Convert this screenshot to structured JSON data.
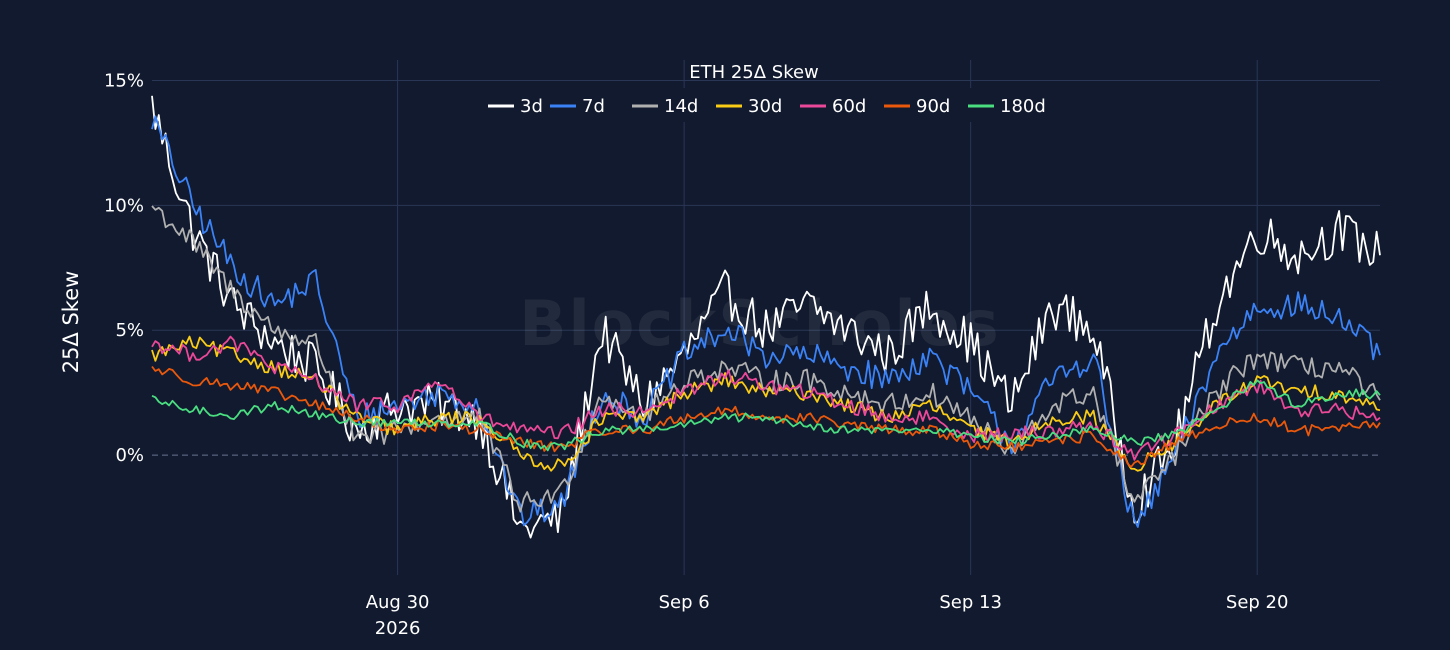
{
  "watermark": "BlockScholes",
  "chart_data": {
    "type": "line",
    "title": "ETH 25Δ Skew",
    "ylabel": "25Δ Skew",
    "xlabel": "",
    "y_unit": "%",
    "ylim": [
      -4.8,
      15.5
    ],
    "yticks": [
      0,
      5,
      10,
      15
    ],
    "ytick_labels": [
      "0%",
      "5%",
      "10%",
      "15%"
    ],
    "xlim": [
      "2026-08-24",
      "2026-09-23"
    ],
    "xticks": [
      "2026-08-30",
      "2026-09-06",
      "2026-09-13",
      "2026-09-20"
    ],
    "xtick_labels": [
      {
        "line1": "Aug 30",
        "line2": "2026"
      },
      {
        "line1": "Sep 6",
        "line2": ""
      },
      {
        "line1": "Sep 13",
        "line2": ""
      },
      {
        "line1": "Sep 20",
        "line2": ""
      }
    ],
    "grid": true,
    "legend_position": "top-center",
    "x": [
      "2026-08-24",
      "2026-08-25",
      "2026-08-26",
      "2026-08-27",
      "2026-08-28",
      "2026-08-29",
      "2026-08-30",
      "2026-08-31",
      "2026-09-01",
      "2026-09-02",
      "2026-09-03",
      "2026-09-04",
      "2026-09-05",
      "2026-09-06",
      "2026-09-07",
      "2026-09-08",
      "2026-09-09",
      "2026-09-10",
      "2026-09-11",
      "2026-09-12",
      "2026-09-13",
      "2026-09-14",
      "2026-09-15",
      "2026-09-16",
      "2026-09-17",
      "2026-09-18",
      "2026-09-19",
      "2026-09-20",
      "2026-09-21",
      "2026-09-22",
      "2026-09-23"
    ],
    "series": [
      {
        "name": "3d",
        "color": "#ffffff",
        "values": [
          14.0,
          9.0,
          6.0,
          4.5,
          3.5,
          1.0,
          2.0,
          2.0,
          1.5,
          -3.0,
          -2.5,
          5.0,
          2.0,
          4.0,
          6.5,
          5.0,
          6.0,
          5.0,
          4.0,
          6.0,
          4.5,
          2.0,
          6.0,
          5.0,
          -2.0,
          0.5,
          6.0,
          9.0,
          8.0,
          9.0,
          8.0
        ]
      },
      {
        "name": "7d",
        "color": "#3b82f6",
        "values": [
          13.5,
          10.0,
          7.5,
          6.0,
          7.0,
          1.5,
          2.0,
          2.5,
          2.0,
          -2.5,
          -2.0,
          2.5,
          1.5,
          4.0,
          5.0,
          4.0,
          4.0,
          3.5,
          3.0,
          4.0,
          2.5,
          0.5,
          3.0,
          4.0,
          -3.0,
          0.0,
          4.0,
          6.0,
          6.0,
          5.5,
          4.0
        ]
      },
      {
        "name": "14d",
        "color": "#b0b0b0",
        "values": [
          10.0,
          8.5,
          6.5,
          5.0,
          4.5,
          0.5,
          1.0,
          1.5,
          1.5,
          -2.0,
          -1.5,
          2.5,
          1.5,
          3.0,
          3.5,
          3.0,
          3.0,
          2.5,
          2.0,
          2.5,
          1.5,
          0.0,
          2.0,
          2.5,
          -2.0,
          0.0,
          2.5,
          4.0,
          3.5,
          3.5,
          2.2
        ]
      },
      {
        "name": "30d",
        "color": "#facc15",
        "values": [
          4.0,
          4.5,
          4.0,
          3.5,
          3.0,
          1.5,
          1.0,
          1.5,
          1.5,
          0.0,
          -0.5,
          1.5,
          1.5,
          2.5,
          3.0,
          2.5,
          2.5,
          2.0,
          1.5,
          2.0,
          1.0,
          0.5,
          1.5,
          1.5,
          -0.5,
          0.5,
          2.0,
          3.0,
          2.5,
          2.5,
          1.8
        ]
      },
      {
        "name": "60d",
        "color": "#ec4899",
        "values": [
          4.5,
          4.0,
          4.5,
          3.5,
          3.0,
          2.0,
          2.0,
          3.0,
          1.5,
          1.0,
          0.8,
          1.8,
          1.8,
          2.5,
          3.2,
          2.8,
          2.5,
          2.0,
          1.5,
          1.5,
          0.8,
          0.8,
          1.0,
          1.2,
          0.0,
          0.8,
          2.0,
          2.8,
          1.8,
          1.8,
          1.5
        ]
      },
      {
        "name": "90d",
        "color": "#ea580c",
        "values": [
          3.5,
          3.0,
          2.8,
          2.5,
          2.0,
          1.5,
          1.0,
          1.2,
          1.0,
          0.5,
          0.3,
          1.0,
          1.0,
          1.5,
          1.8,
          1.5,
          1.5,
          1.2,
          1.0,
          1.0,
          0.5,
          0.3,
          0.5,
          0.8,
          -0.5,
          0.5,
          1.2,
          1.5,
          1.0,
          1.0,
          1.3
        ]
      },
      {
        "name": "180d",
        "color": "#4ade80",
        "values": [
          2.2,
          1.8,
          1.6,
          2.0,
          1.6,
          1.3,
          1.3,
          1.3,
          1.3,
          0.5,
          0.3,
          1.0,
          1.0,
          1.2,
          1.5,
          1.5,
          1.2,
          1.0,
          1.0,
          1.0,
          0.8,
          0.5,
          0.8,
          1.0,
          0.5,
          0.8,
          1.8,
          3.0,
          2.0,
          2.5,
          2.4
        ]
      }
    ]
  }
}
